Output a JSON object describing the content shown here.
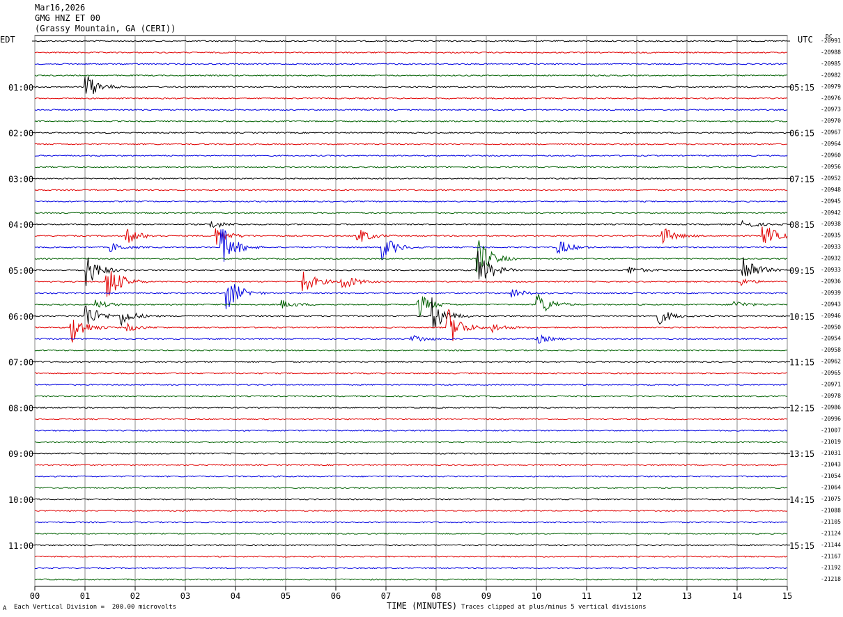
{
  "header": {
    "date": "Mar16,2026",
    "station": "GMG HNZ ET 00",
    "location": "(Grassy Mountain, GA (CERI))"
  },
  "tz_left": "EDT",
  "tz_right": "UTC",
  "dc_label": "DC",
  "footer": {
    "scale_note": "Each Vertical Division =  200.00 microvolts",
    "clip_note": "Traces clipped at plus/minus 5 vertical divisions",
    "mark": "A"
  },
  "chart_data": {
    "type": "line",
    "title": "GMG HNZ ET 00",
    "xlabel": "TIME (MINUTES)",
    "x_ticks": [
      "00",
      "01",
      "02",
      "03",
      "04",
      "05",
      "06",
      "07",
      "08",
      "09",
      "10",
      "11",
      "12",
      "13",
      "14",
      "15"
    ],
    "xlim": [
      0,
      15
    ],
    "grid": true,
    "trace_colors": [
      "#000000",
      "#e00000",
      "#0000e0",
      "#006000"
    ],
    "left_time_labels": [
      "01:00",
      "02:00",
      "03:00",
      "04:00",
      "05:00",
      "06:00",
      "07:00",
      "08:00",
      "09:00",
      "10:00",
      "11:00"
    ],
    "right_time_labels": [
      "05:15",
      "06:15",
      "07:15",
      "08:15",
      "09:15",
      "10:15",
      "11:15",
      "12:15",
      "13:15",
      "14:15",
      "15:15"
    ],
    "dc_offsets": [
      -20991,
      -20988,
      -20985,
      -20982,
      -20979,
      -20976,
      -20973,
      -20970,
      -20967,
      -20964,
      -20960,
      -20956,
      -20952,
      -20948,
      -20945,
      -20942,
      -20938,
      -20935,
      -20933,
      -20932,
      -20933,
      -20936,
      -20939,
      -20943,
      -20946,
      -20950,
      -20954,
      -20958,
      -20962,
      -20965,
      -20971,
      -20978,
      -20986,
      -20996,
      -21007,
      -21019,
      -21031,
      -21043,
      -21054,
      -21064,
      -21075,
      -21088,
      -21105,
      -21124,
      -21144,
      -21167,
      -21192,
      -21218
    ],
    "events": [
      {
        "trace": 4,
        "minute": 1.0,
        "amp": 3
      },
      {
        "trace": 16,
        "minute": 3.5,
        "amp": 1
      },
      {
        "trace": 16,
        "minute": 14.1,
        "amp": 1
      },
      {
        "trace": 17,
        "minute": 1.8,
        "amp": 2
      },
      {
        "trace": 17,
        "minute": 3.6,
        "amp": 2
      },
      {
        "trace": 17,
        "minute": 6.4,
        "amp": 2
      },
      {
        "trace": 17,
        "minute": 12.5,
        "amp": 2
      },
      {
        "trace": 17,
        "minute": 14.5,
        "amp": 3
      },
      {
        "trace": 18,
        "minute": 1.5,
        "amp": 1
      },
      {
        "trace": 18,
        "minute": 3.7,
        "amp": 5
      },
      {
        "trace": 18,
        "minute": 6.9,
        "amp": 3
      },
      {
        "trace": 18,
        "minute": 10.4,
        "amp": 2
      },
      {
        "trace": 19,
        "minute": 8.8,
        "amp": 5
      },
      {
        "trace": 20,
        "minute": 1.0,
        "amp": 4
      },
      {
        "trace": 20,
        "minute": 8.8,
        "amp": 5
      },
      {
        "trace": 20,
        "minute": 11.8,
        "amp": 1
      },
      {
        "trace": 20,
        "minute": 14.1,
        "amp": 4
      },
      {
        "trace": 21,
        "minute": 1.4,
        "amp": 5
      },
      {
        "trace": 21,
        "minute": 5.3,
        "amp": 3
      },
      {
        "trace": 21,
        "minute": 6.1,
        "amp": 2
      },
      {
        "trace": 21,
        "minute": 14.0,
        "amp": 1
      },
      {
        "trace": 22,
        "minute": 3.8,
        "amp": 4
      },
      {
        "trace": 22,
        "minute": 9.5,
        "amp": 1
      },
      {
        "trace": 23,
        "minute": 1.2,
        "amp": 1
      },
      {
        "trace": 23,
        "minute": 4.9,
        "amp": 1
      },
      {
        "trace": 23,
        "minute": 7.6,
        "amp": 3
      },
      {
        "trace": 23,
        "minute": 10.0,
        "amp": 3
      },
      {
        "trace": 23,
        "minute": 13.9,
        "amp": 1
      },
      {
        "trace": 24,
        "minute": 1.0,
        "amp": 3
      },
      {
        "trace": 24,
        "minute": 1.7,
        "amp": 2
      },
      {
        "trace": 24,
        "minute": 7.9,
        "amp": 4
      },
      {
        "trace": 24,
        "minute": 12.4,
        "amp": 2
      },
      {
        "trace": 25,
        "minute": 0.7,
        "amp": 4
      },
      {
        "trace": 25,
        "minute": 1.8,
        "amp": 1
      },
      {
        "trace": 25,
        "minute": 8.2,
        "amp": 5
      },
      {
        "trace": 25,
        "minute": 9.1,
        "amp": 1
      },
      {
        "trace": 26,
        "minute": 7.5,
        "amp": 1
      },
      {
        "trace": 26,
        "minute": 10.0,
        "amp": 1
      }
    ]
  }
}
